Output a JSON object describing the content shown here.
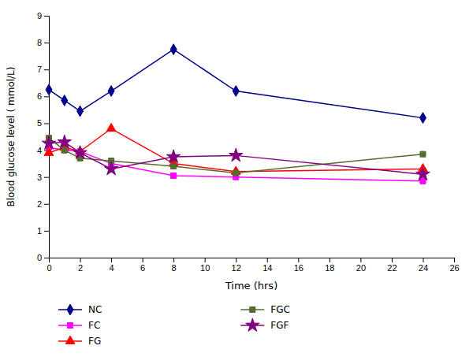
{
  "chart_data": {
    "type": "line",
    "x": [
      0,
      1,
      2,
      4,
      8,
      12,
      24
    ],
    "series": [
      {
        "name": "NC",
        "color": "#00008B",
        "marker": "diamond",
        "values": [
          6.25,
          5.85,
          5.45,
          6.2,
          7.75,
          6.2,
          5.2
        ]
      },
      {
        "name": "FC",
        "color": "#FF00FF",
        "marker": "square",
        "values": [
          4.1,
          4.0,
          3.95,
          3.5,
          3.05,
          3.0,
          2.85
        ]
      },
      {
        "name": "FG",
        "color": "#FF0000",
        "marker": "triangle",
        "values": [
          3.9,
          4.1,
          3.95,
          4.8,
          3.5,
          3.2,
          3.3
        ]
      },
      {
        "name": "FGC",
        "color": "#556B2F",
        "marker": "square",
        "values": [
          4.45,
          4.0,
          3.7,
          3.6,
          3.4,
          3.15,
          3.85
        ]
      },
      {
        "name": "FGF",
        "color": "#800080",
        "marker": "star",
        "values": [
          4.25,
          4.3,
          3.9,
          3.3,
          3.75,
          3.8,
          3.1
        ]
      }
    ],
    "xlabel": "Time (hrs)",
    "ylabel": "Blood glucose level ( mmol/L)",
    "xlim": [
      0,
      26
    ],
    "ylim": [
      0,
      9
    ],
    "xticks": [
      0,
      2,
      4,
      6,
      8,
      10,
      12,
      14,
      16,
      18,
      20,
      22,
      24,
      26
    ],
    "yticks": [
      0,
      1,
      2,
      3,
      4,
      5,
      6,
      7,
      8,
      9
    ],
    "grid": false,
    "legend": "bottom"
  }
}
